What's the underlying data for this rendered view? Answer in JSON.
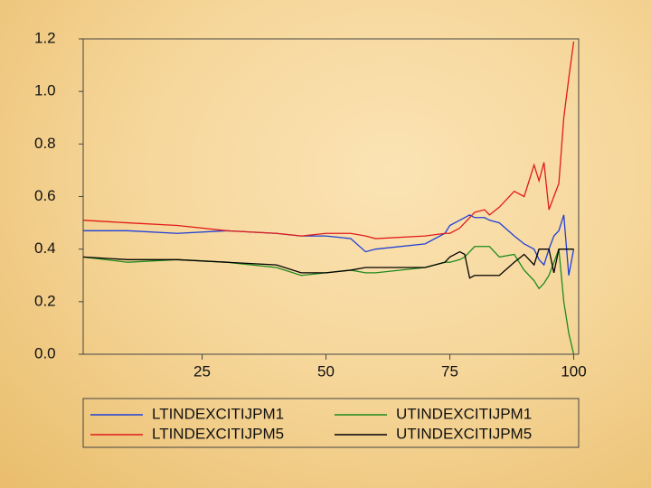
{
  "chart_data": {
    "type": "line",
    "x": [
      1,
      10,
      20,
      30,
      40,
      45,
      50,
      55,
      58,
      60,
      70,
      74,
      75,
      77,
      78,
      79,
      80,
      82,
      83,
      85,
      88,
      90,
      92,
      93,
      94,
      95,
      96,
      97,
      98,
      99,
      100
    ],
    "series": [
      {
        "name": "LTINDEXCITIJPM1",
        "color": "#1f3fd6",
        "values": [
          0.47,
          0.47,
          0.46,
          0.47,
          0.46,
          0.45,
          0.45,
          0.44,
          0.39,
          0.4,
          0.42,
          0.46,
          0.49,
          0.51,
          0.52,
          0.53,
          0.52,
          0.52,
          0.51,
          0.5,
          0.45,
          0.42,
          0.4,
          0.36,
          0.34,
          0.4,
          0.45,
          0.47,
          0.53,
          0.3,
          0.4
        ]
      },
      {
        "name": "UTINDEXCITIJPM1",
        "color": "#1e8a1e",
        "values": [
          0.37,
          0.35,
          0.36,
          0.35,
          0.33,
          0.3,
          0.31,
          0.32,
          0.31,
          0.31,
          0.33,
          0.35,
          0.35,
          0.36,
          0.37,
          0.39,
          0.41,
          0.41,
          0.41,
          0.37,
          0.38,
          0.32,
          0.28,
          0.25,
          0.27,
          0.3,
          0.35,
          0.4,
          0.2,
          0.08,
          0.0
        ]
      },
      {
        "name": "LTINDEXCITIJPM5",
        "color": "#e01b1b",
        "values": [
          0.51,
          0.5,
          0.49,
          0.47,
          0.46,
          0.45,
          0.46,
          0.46,
          0.45,
          0.44,
          0.45,
          0.46,
          0.46,
          0.48,
          0.5,
          0.52,
          0.54,
          0.55,
          0.53,
          0.56,
          0.62,
          0.6,
          0.72,
          0.66,
          0.73,
          0.55,
          0.6,
          0.65,
          0.9,
          1.05,
          1.19
        ]
      },
      {
        "name": "UTINDEXCITIJPM5",
        "color": "#000000",
        "values": [
          0.37,
          0.36,
          0.36,
          0.35,
          0.34,
          0.31,
          0.31,
          0.32,
          0.33,
          0.33,
          0.33,
          0.35,
          0.37,
          0.39,
          0.38,
          0.29,
          0.3,
          0.3,
          0.3,
          0.3,
          0.35,
          0.38,
          0.34,
          0.4,
          0.4,
          0.4,
          0.31,
          0.4,
          0.4,
          0.4,
          0.4
        ]
      }
    ],
    "xlim": [
      1,
      101
    ],
    "xticks": [
      25,
      50,
      75,
      100
    ],
    "ylim": [
      0,
      1.2
    ],
    "yticks": [
      {
        "value": 0,
        "label": "0.0"
      },
      0.2,
      0.4,
      0.6,
      0.8,
      {
        "value": 1,
        "label": "1.0"
      },
      1.2
    ]
  }
}
